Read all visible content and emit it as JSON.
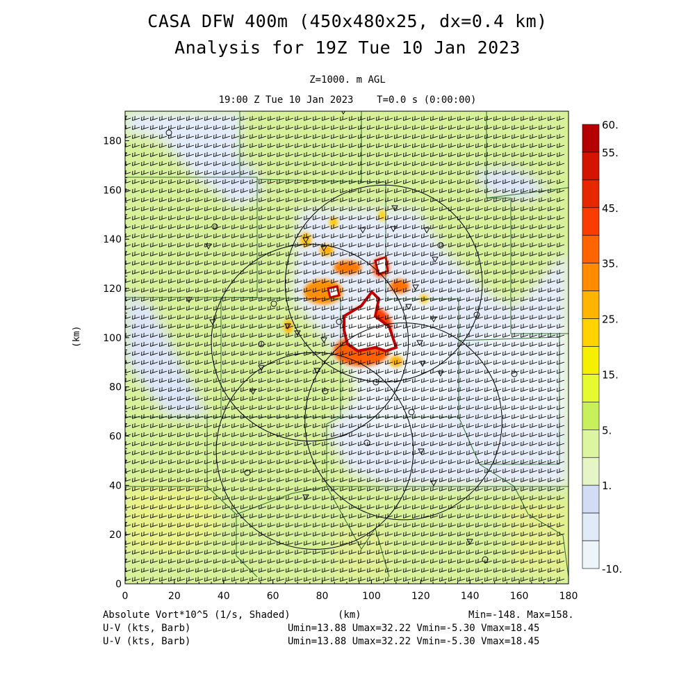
{
  "title_line1": "CASA DFW 400m (450x480x25, dx=0.4 km)",
  "title_line2": "Analysis for 19Z Tue 10 Jan 2023",
  "level_label": "Z=1000. m AGL",
  "time_label": "19:00 Z Tue 10 Jan 2023    T=0.0 s (0:00:00)",
  "footer": {
    "field_label": "Absolute Vort*10^5 (1/s, Shaded)",
    "xunit": "(km)",
    "minmax": "Min=-148. Max=158.",
    "wind1_label": "U-V (kts, Barb)",
    "wind1_stats": "Umin=13.88 Umax=32.22 Vmin=-5.30 Vmax=18.45",
    "wind2_label": "U-V (kts, Barb)",
    "wind2_stats": "Umin=13.88 Umax=32.22 Vmin=-5.30 Vmax=18.45"
  },
  "chart_data": {
    "type": "heatmap",
    "xlabel": "",
    "ylabel": "(km)",
    "xlim": [
      0,
      180
    ],
    "ylim": [
      0,
      192
    ],
    "xticks": [
      0,
      20,
      40,
      60,
      80,
      100,
      120,
      140,
      160,
      180
    ],
    "yticks": [
      0,
      20,
      40,
      60,
      80,
      100,
      120,
      140,
      160,
      180
    ],
    "colorbar": {
      "labels": [
        "60.",
        "55.",
        "45.",
        "35.",
        "25.",
        "15.",
        "5.",
        "1.",
        "-10."
      ],
      "colors": [
        "#b40000",
        "#d21400",
        "#e62800",
        "#fa3c00",
        "#ff6400",
        "#ff8c00",
        "#ffb400",
        "#ffd200",
        "#f5f000",
        "#e6fa32",
        "#c8f05a",
        "#dcf5a0",
        "#e6f5c8",
        "#d2dcf5",
        "#e1ebf8",
        "#ebf5fa"
      ]
    },
    "radar_rings": [
      {
        "cx": 77,
        "cy": 54,
        "r": 40
      },
      {
        "cx": 75,
        "cy": 98,
        "r": 40
      },
      {
        "cx": 105,
        "cy": 122,
        "r": 40
      },
      {
        "cx": 113,
        "cy": 66,
        "r": 40
      }
    ],
    "wind_barb_u_kts": 25,
    "wind_barb_v_kts": 8
  }
}
